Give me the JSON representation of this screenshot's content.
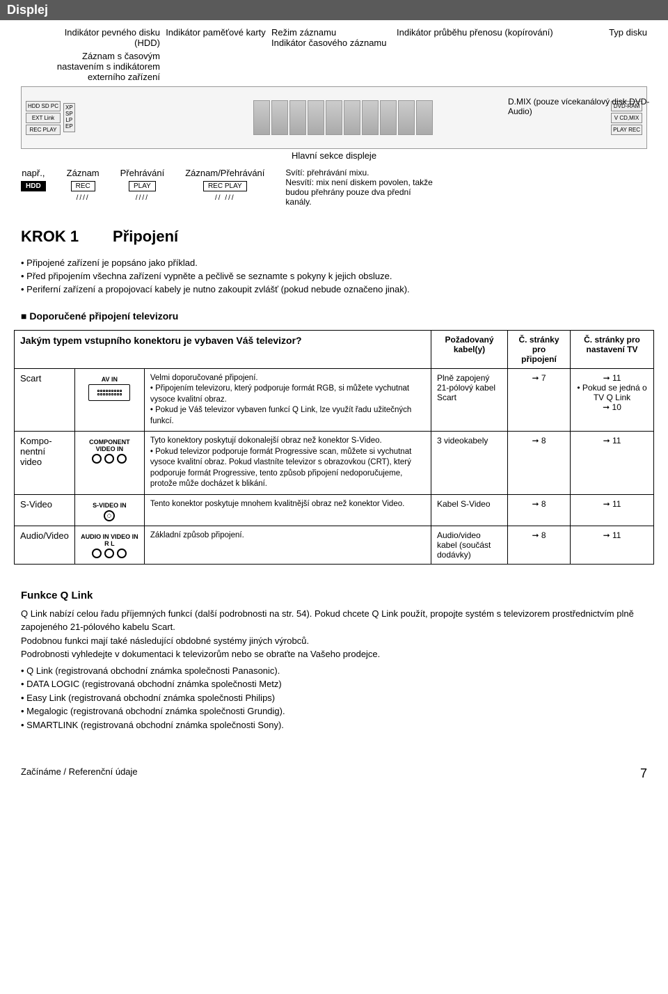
{
  "header": {
    "title": "Displej"
  },
  "display": {
    "label_mem_card": "Indikátor paměťové karty",
    "label_hdd": "Indikátor pevného disku\n(HDD)",
    "label_ext": "Záznam s časovým\nnastavením s indikátorem\nexterního zařízení",
    "label_rec_mode": "Režim záznamu",
    "label_time_rec": "Indikátor časového záznamu",
    "label_main": "Hlavní sekce displeje",
    "label_progress": "Indikátor průběhu přenosu (kopírování)",
    "label_disc_type": "Typ disku",
    "dmix_note": "D.MIX (pouze vícekanálový disk DVD-Audio)",
    "diag_left_1": "HDD SD PC",
    "diag_left_2": "EXT Link",
    "diag_left_3": "REC PLAY",
    "diag_modes": "XP\nSP\nLP\nEP",
    "diag_right_1": "DVD-RAM",
    "diag_right_2": "V CD,MIX",
    "diag_right_3": "PLAY REC",
    "example_label": "např.,",
    "example_badge": "HDD",
    "rec_label": "Záznam",
    "rec_badge": "REC",
    "play_label": "Přehrávání",
    "play_badge": "PLAY",
    "recplay_label": "Záznam/Přehrávání",
    "recplay_badge": "REC PLAY",
    "mix_lit": "Svítí: přehrávání mixu.",
    "mix_unlit": "Nesvítí: mix není diskem povolen, takže budou přehrány pouze dva přední kanály."
  },
  "krok": {
    "title": "KROK 1        Připojení"
  },
  "bullets": [
    "Připojené zařízení je popsáno jako příklad.",
    "Před připojením všechna zařízení vypněte a pečlivě se seznamte s pokyny k jejich obsluze.",
    "Periferní zařízení a propojovací kabely je nutno zakoupit zvlášť (pokud nebude označeno jinak)."
  ],
  "subheading": "Doporučené připojení televizoru",
  "table": {
    "header_q": "Jakým typem vstupního konektoru je vybaven Váš televizor?",
    "header_cable": "Požadovaný kabel(y)",
    "header_page_conn": "Č. stránky pro připojení",
    "header_page_tv": "Č. stránky pro nastavení TV",
    "rows": [
      {
        "type": "Scart",
        "icon_label": "AV IN",
        "icon": "scart",
        "desc_intro": "Velmi doporučované připojení.",
        "desc_items": [
          "Připojením televizoru, který podporuje formát RGB, si můžete vychutnat vysoce kvalitní obraz.",
          "Pokud je Váš televizor vybaven funkcí Q Link, lze využít řadu užitečných funkcí."
        ],
        "cable": "Plně zapojený 21-pólový kabel Scart",
        "page_conn": "7",
        "page_tv_lines": [
          "➞ 11",
          "• Pokud se jedná o TV Q Link",
          "➞ 10"
        ]
      },
      {
        "type": "Kompo-\nnentní\nvideo",
        "icon_label": "COMPONENT\nVIDEO IN",
        "icon": "component",
        "desc_intro": "Tyto konektory poskytují dokonalejší obraz než konektor S-Video.",
        "desc_items": [
          "Pokud televizor podporuje formát Progressive scan, můžete si vychutnat vysoce kvalitní obraz. Pokud vlastníte televizor s obrazovkou (CRT), který podporuje formát Progressive, tento způsob připojení nedoporučujeme, protože může docházet k blikání."
        ],
        "cable": "3 videokabely",
        "page_conn": "8",
        "page_tv_lines": [
          "➞ 11"
        ]
      },
      {
        "type": "S-Video",
        "icon_label": "S-VIDEO IN",
        "icon": "svideo",
        "desc_intro": "Tento konektor poskytuje mnohem kvalitnější obraz než konektor Video.",
        "desc_items": [],
        "cable": "Kabel S-Video",
        "page_conn": "8",
        "page_tv_lines": [
          "➞ 11"
        ]
      },
      {
        "type": "Audio/Video",
        "icon_label": "AUDIO IN   VIDEO IN\nR   L",
        "icon": "av",
        "desc_intro": "Základní způsob připojení.",
        "desc_items": [],
        "cable": "Audio/video kabel (součást dodávky)",
        "page_conn": "8",
        "page_tv_lines": [
          "➞ 11"
        ]
      }
    ]
  },
  "qlink": {
    "heading": "Funkce Q Link",
    "para1": "Q Link nabízí celou řadu příjemných funkcí (další podrobnosti na str. 54). Pokud chcete Q Link použít, propojte systém s televizorem prostřednictvím plně zapojeného 21-pólového kabelu Scart.",
    "para2": "Podobnou funkci mají také následující obdobné systémy jiných výrobců.",
    "para3": "Podrobnosti vyhledejte v dokumentaci k televizorům nebo se obraťte na Vašeho prodejce.",
    "items": [
      "Q Link (registrovaná obchodní známka společnosti Panasonic).",
      "DATA LOGIC (registrovaná obchodní známka společnosti Metz)",
      "Easy Link (registrovaná obchodní známka společnosti Philips)",
      "Megalogic (registrovaná obchodní známka společnosti Grundig).",
      "SMARTLINK (registrovaná obchodní známka společnosti Sony)."
    ]
  },
  "footer": {
    "left": "Začínáme / Referenční údaje",
    "page": "7"
  }
}
